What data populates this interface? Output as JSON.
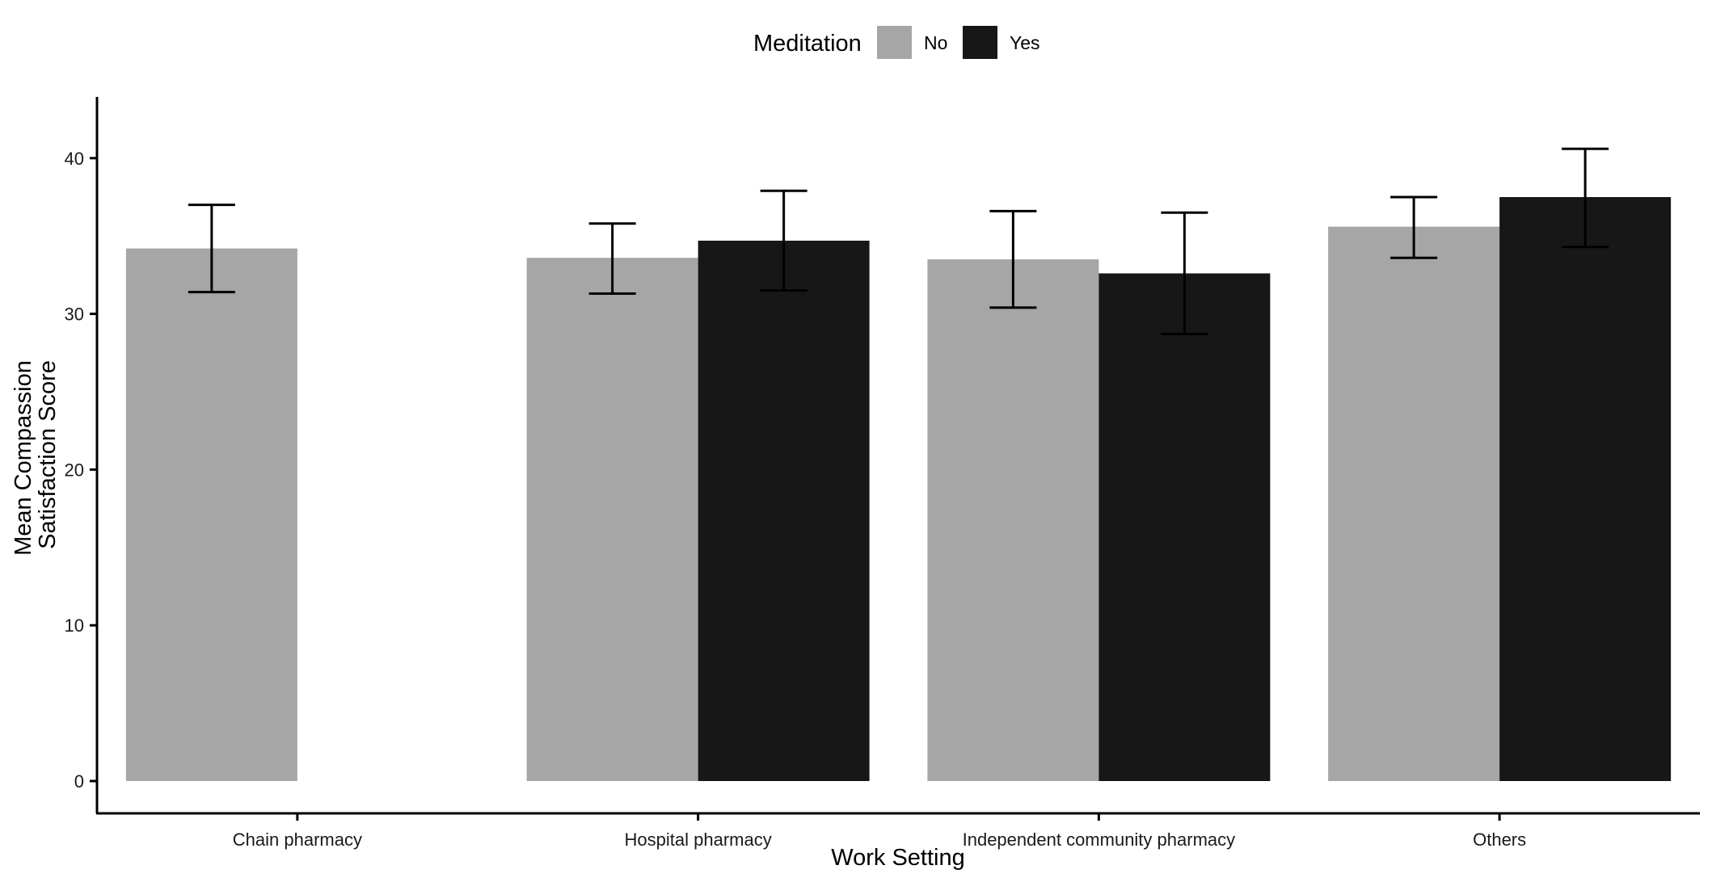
{
  "chart_data": {
    "type": "bar",
    "xlabel": "Work Setting",
    "ylabel_lines": [
      "Mean Compassion",
      "Satisfaction Score"
    ],
    "categories": [
      "Chain pharmacy",
      "Hospital pharmacy",
      "Independent community pharmacy",
      "Others"
    ],
    "ylim": [
      0,
      44
    ],
    "yticks": [
      "0",
      "10",
      "20",
      "30",
      "40"
    ],
    "grid": false,
    "legend": {
      "title": "Meditation",
      "placement": "top"
    },
    "series": [
      {
        "name": "No",
        "color": "#a6a6a6",
        "values": [
          34.2,
          33.6,
          33.5,
          35.6
        ],
        "error_low": [
          31.4,
          31.3,
          30.4,
          33.6
        ],
        "error_high": [
          37.0,
          35.8,
          36.6,
          37.5
        ]
      },
      {
        "name": "Yes",
        "color": "#171717",
        "values": [
          null,
          34.7,
          32.6,
          37.5
        ],
        "error_low": [
          null,
          31.5,
          28.7,
          34.3
        ],
        "error_high": [
          null,
          37.9,
          36.5,
          40.6
        ]
      }
    ]
  }
}
